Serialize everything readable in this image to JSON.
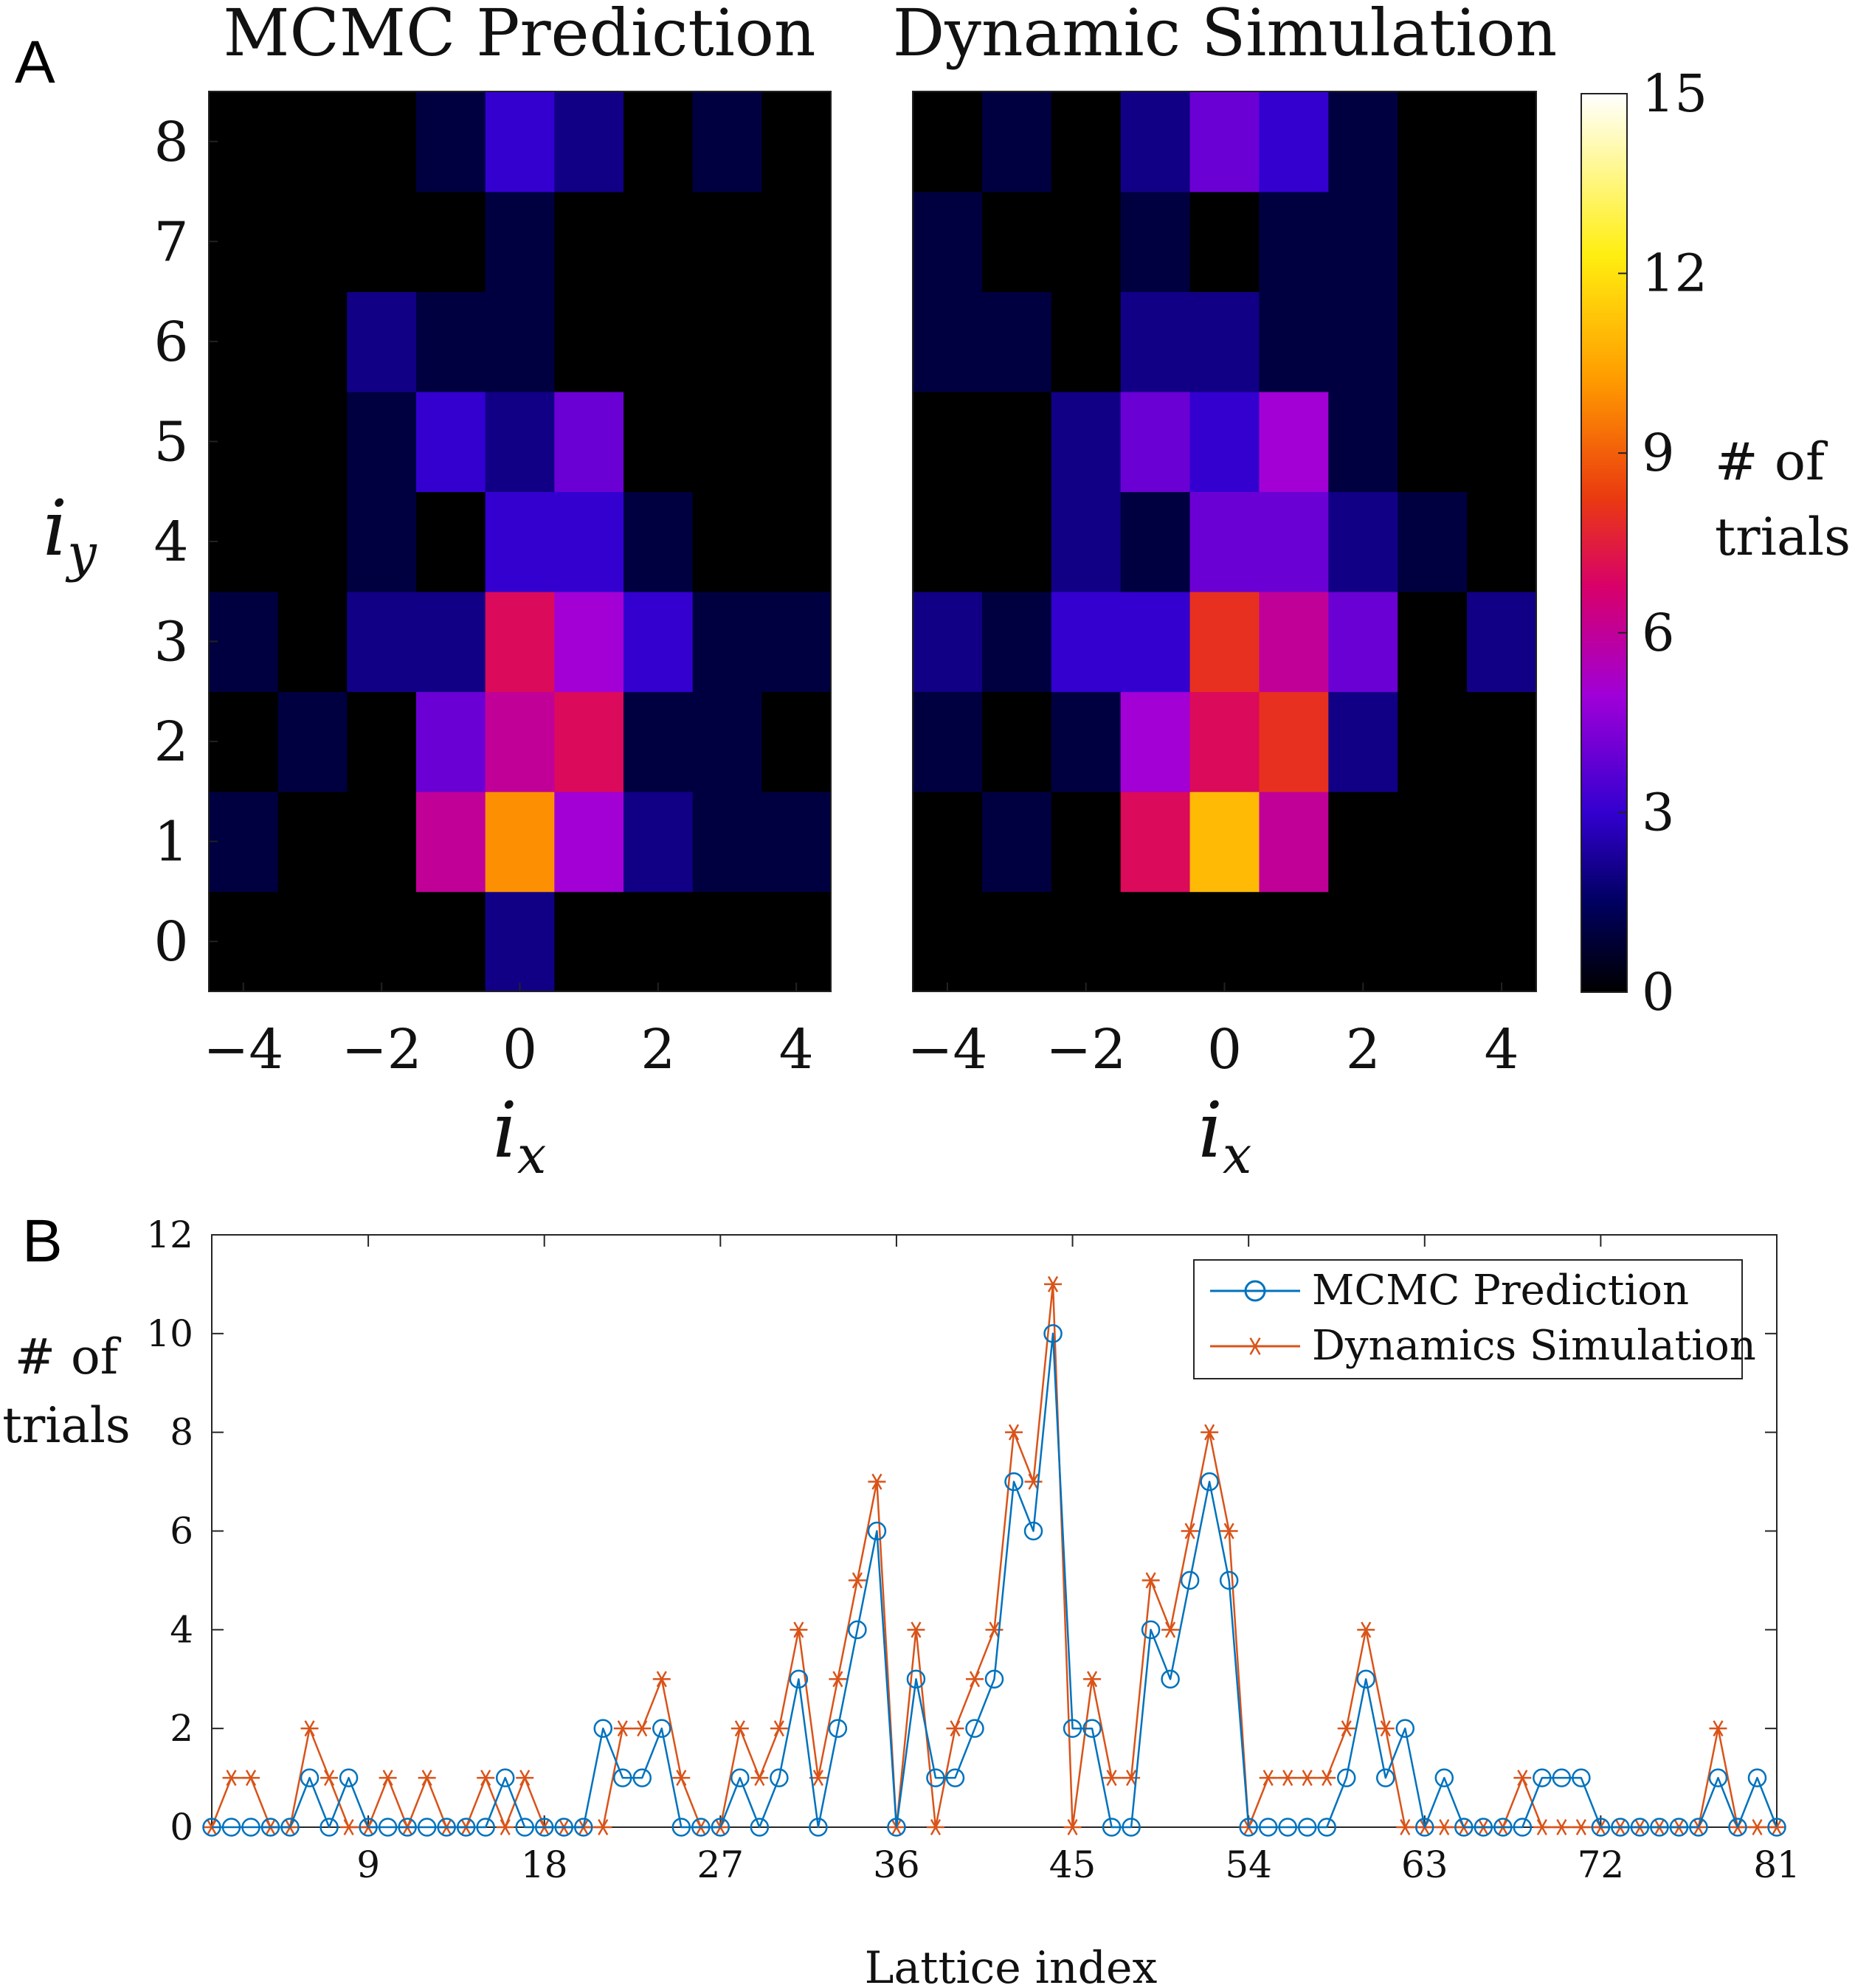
{
  "panel_labels": {
    "a": "A",
    "b": "B"
  },
  "colorbar": {
    "ticks": [
      "0",
      "3",
      "6",
      "9",
      "12",
      "15"
    ],
    "label_line1": "# of",
    "label_line2": "trials",
    "range": [
      0,
      15
    ],
    "colormap": "fire"
  },
  "panel_b_ylabel": {
    "line1": "# of",
    "line2": "trials"
  },
  "chart_data": [
    {
      "type": "heatmap",
      "title": "MCMC Prediction",
      "xlabel": "i",
      "xlabel_sub": "x",
      "ylabel": "i",
      "ylabel_sub": "y",
      "x_categories": [
        -4,
        -3,
        -2,
        -1,
        0,
        1,
        2,
        3,
        4
      ],
      "y_categories": [
        0,
        1,
        2,
        3,
        4,
        5,
        6,
        7,
        8
      ],
      "x_ticks": [
        "−4",
        "−2",
        "0",
        "2",
        "4"
      ],
      "y_ticks": [
        "0",
        "1",
        "2",
        "3",
        "4",
        "5",
        "6",
        "7",
        "8"
      ],
      "clim": [
        0,
        15
      ],
      "rows": [
        [
          0,
          0,
          0,
          0,
          2,
          0,
          0,
          0,
          0
        ],
        [
          1,
          0,
          0,
          6,
          10,
          5,
          2,
          1,
          1
        ],
        [
          0,
          1,
          0,
          4,
          6,
          7,
          1,
          1,
          0
        ],
        [
          1,
          0,
          2,
          2,
          7,
          5,
          3,
          1,
          1
        ],
        [
          0,
          0,
          1,
          0,
          3,
          3,
          1,
          0,
          0
        ],
        [
          0,
          0,
          1,
          3,
          2,
          4,
          0,
          0,
          0
        ],
        [
          0,
          0,
          2,
          1,
          1,
          0,
          0,
          0,
          0
        ],
        [
          0,
          0,
          0,
          0,
          1,
          0,
          0,
          0,
          0
        ],
        [
          0,
          0,
          0,
          1,
          3,
          2,
          0,
          1,
          0
        ]
      ]
    },
    {
      "type": "heatmap",
      "title": "Dynamic Simulation",
      "xlabel": "i",
      "xlabel_sub": "x",
      "x_categories": [
        -4,
        -3,
        -2,
        -1,
        0,
        1,
        2,
        3,
        4
      ],
      "y_categories": [
        0,
        1,
        2,
        3,
        4,
        5,
        6,
        7,
        8
      ],
      "x_ticks": [
        "−4",
        "−2",
        "0",
        "2",
        "4"
      ],
      "clim": [
        0,
        15
      ],
      "rows": [
        [
          0,
          0,
          0,
          0,
          0,
          0,
          0,
          0,
          0
        ],
        [
          0,
          1,
          0,
          7,
          11,
          6,
          0,
          0,
          0
        ],
        [
          1,
          0,
          1,
          5,
          7,
          8,
          2,
          0,
          0
        ],
        [
          2,
          1,
          3,
          3,
          8,
          6,
          4,
          0,
          2
        ],
        [
          0,
          0,
          2,
          1,
          4,
          4,
          2,
          1,
          0
        ],
        [
          0,
          0,
          2,
          4,
          3,
          5,
          1,
          0,
          0
        ],
        [
          1,
          1,
          0,
          2,
          2,
          1,
          1,
          0,
          0
        ],
        [
          1,
          0,
          0,
          1,
          0,
          1,
          1,
          0,
          0
        ],
        [
          0,
          1,
          0,
          2,
          4,
          3,
          1,
          0,
          0
        ]
      ]
    },
    {
      "type": "line",
      "xlabel": "Lattice index",
      "ylabel": "# of trials",
      "xlim": [
        1,
        81
      ],
      "ylim": [
        0,
        12
      ],
      "x_ticks": [
        9,
        18,
        27,
        36,
        45,
        54,
        63,
        72,
        81
      ],
      "y_ticks": [
        0,
        2,
        4,
        6,
        8,
        10,
        12
      ],
      "legend_position": "top-right",
      "series": [
        {
          "name": "MCMC Prediction",
          "color": "#0072BD",
          "marker": "circle",
          "values": [
            0,
            0,
            0,
            0,
            0,
            1,
            0,
            1,
            0,
            0,
            0,
            0,
            0,
            0,
            0,
            1,
            0,
            0,
            0,
            0,
            2,
            1,
            1,
            2,
            0,
            0,
            0,
            1,
            0,
            1,
            3,
            0,
            2,
            4,
            6,
            0,
            3,
            1,
            1,
            2,
            3,
            7,
            6,
            10,
            2,
            2,
            0,
            0,
            4,
            3,
            5,
            7,
            5,
            0,
            0,
            0,
            0,
            0,
            1,
            3,
            1,
            2,
            0,
            1,
            0,
            0,
            0,
            0,
            1,
            1,
            1,
            0,
            0,
            0,
            0,
            0,
            0,
            1,
            0,
            1,
            0
          ]
        },
        {
          "name": "Dynamics Simulation",
          "color": "#D95319",
          "marker": "asterisk",
          "values": [
            0,
            1,
            1,
            0,
            0,
            2,
            1,
            0,
            0,
            1,
            0,
            1,
            0,
            0,
            1,
            0,
            1,
            0,
            0,
            0,
            0,
            2,
            2,
            3,
            1,
            0,
            0,
            2,
            1,
            2,
            4,
            1,
            3,
            5,
            7,
            0,
            4,
            0,
            2,
            3,
            4,
            8,
            7,
            11,
            0,
            3,
            1,
            1,
            5,
            4,
            6,
            8,
            6,
            0,
            1,
            1,
            1,
            1,
            2,
            4,
            2,
            0,
            0,
            0,
            0,
            0,
            0,
            1,
            0,
            0,
            0,
            0,
            0,
            0,
            0,
            0,
            0,
            2,
            0,
            0,
            0
          ]
        }
      ]
    }
  ]
}
